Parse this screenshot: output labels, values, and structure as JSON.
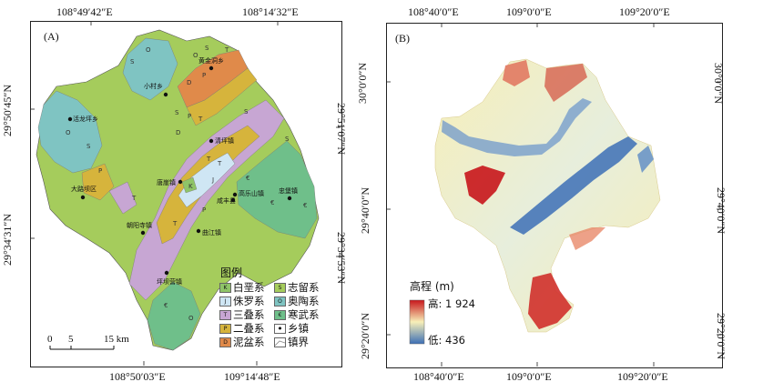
{
  "panelA": {
    "label": "(A)",
    "top_lon": [
      "108°49′42″E",
      "108°14′32″E"
    ],
    "bottom_lon": [
      "108°50′03″E",
      "109°14′48″E"
    ],
    "left_lat": [
      "29°50′45″N",
      "29°34′31″N"
    ],
    "right_lat": [
      "29°51′07″N",
      "29°34′53″N"
    ],
    "legend_title": "图例",
    "legend": [
      {
        "code": "K",
        "name": "白垩系",
        "color": "#8fc468"
      },
      {
        "code": "S",
        "name": "志留系",
        "color": "#a5cc5c"
      },
      {
        "code": "J",
        "name": "侏罗系",
        "color": "#cfe6f4"
      },
      {
        "code": "O",
        "name": "奥陶系",
        "color": "#7fc4c2"
      },
      {
        "code": "T",
        "name": "三叠系",
        "color": "#c7a6d3"
      },
      {
        "code": "€",
        "name": "寒武系",
        "color": "#6fbf8a"
      },
      {
        "code": "P",
        "name": "二叠系",
        "color": "#d6b43c"
      },
      {
        "code": "•",
        "name": "乡镇",
        "color": "#000000"
      },
      {
        "code": "D",
        "name": "泥盆系",
        "color": "#e08a4a"
      },
      {
        "code": "",
        "name": "镇界",
        "color": "#999999"
      }
    ],
    "scale": {
      "ticks": [
        "0",
        "5",
        "15 km"
      ]
    },
    "towns": [
      "黄金洞乡",
      "小村乡",
      "活龙坪乡",
      "清坪镇",
      "唐崖镇",
      "大路坝区",
      "咸丰县",
      "高乐山镇",
      "忠堡镇",
      "朝阳寺镇",
      "曲江镇",
      "坪坝营镇"
    ],
    "codes": [
      "S",
      "O",
      "O",
      "S",
      "D",
      "P",
      "T",
      "O",
      "S",
      "P",
      "T",
      "D",
      "S",
      "P",
      "T",
      "S",
      "T",
      "T",
      "K",
      "T",
      "J",
      "€",
      "P",
      "€",
      "S",
      "€",
      "O",
      "€"
    ]
  },
  "panelB": {
    "label": "(B)",
    "top_lon": [
      "108°40′0″E",
      "109°0′0″E",
      "109°20′0″E"
    ],
    "bottom_lon": [
      "108°40′0″E",
      "109°0′0″E",
      "109°20′0″E"
    ],
    "left_lat": [
      "30°0′0″N",
      "29°40′0″N",
      "29°20′0″N"
    ],
    "right_lat": [
      "30°0′0″N",
      "29°40′0″N",
      "29°20′0″N"
    ],
    "legend_title": "高程 (m)",
    "high": "高: 1 924",
    "low": "低: 436",
    "colors": {
      "high": "#c8151b",
      "mid": "#f7efb8",
      "low": "#3c6fb6"
    }
  }
}
